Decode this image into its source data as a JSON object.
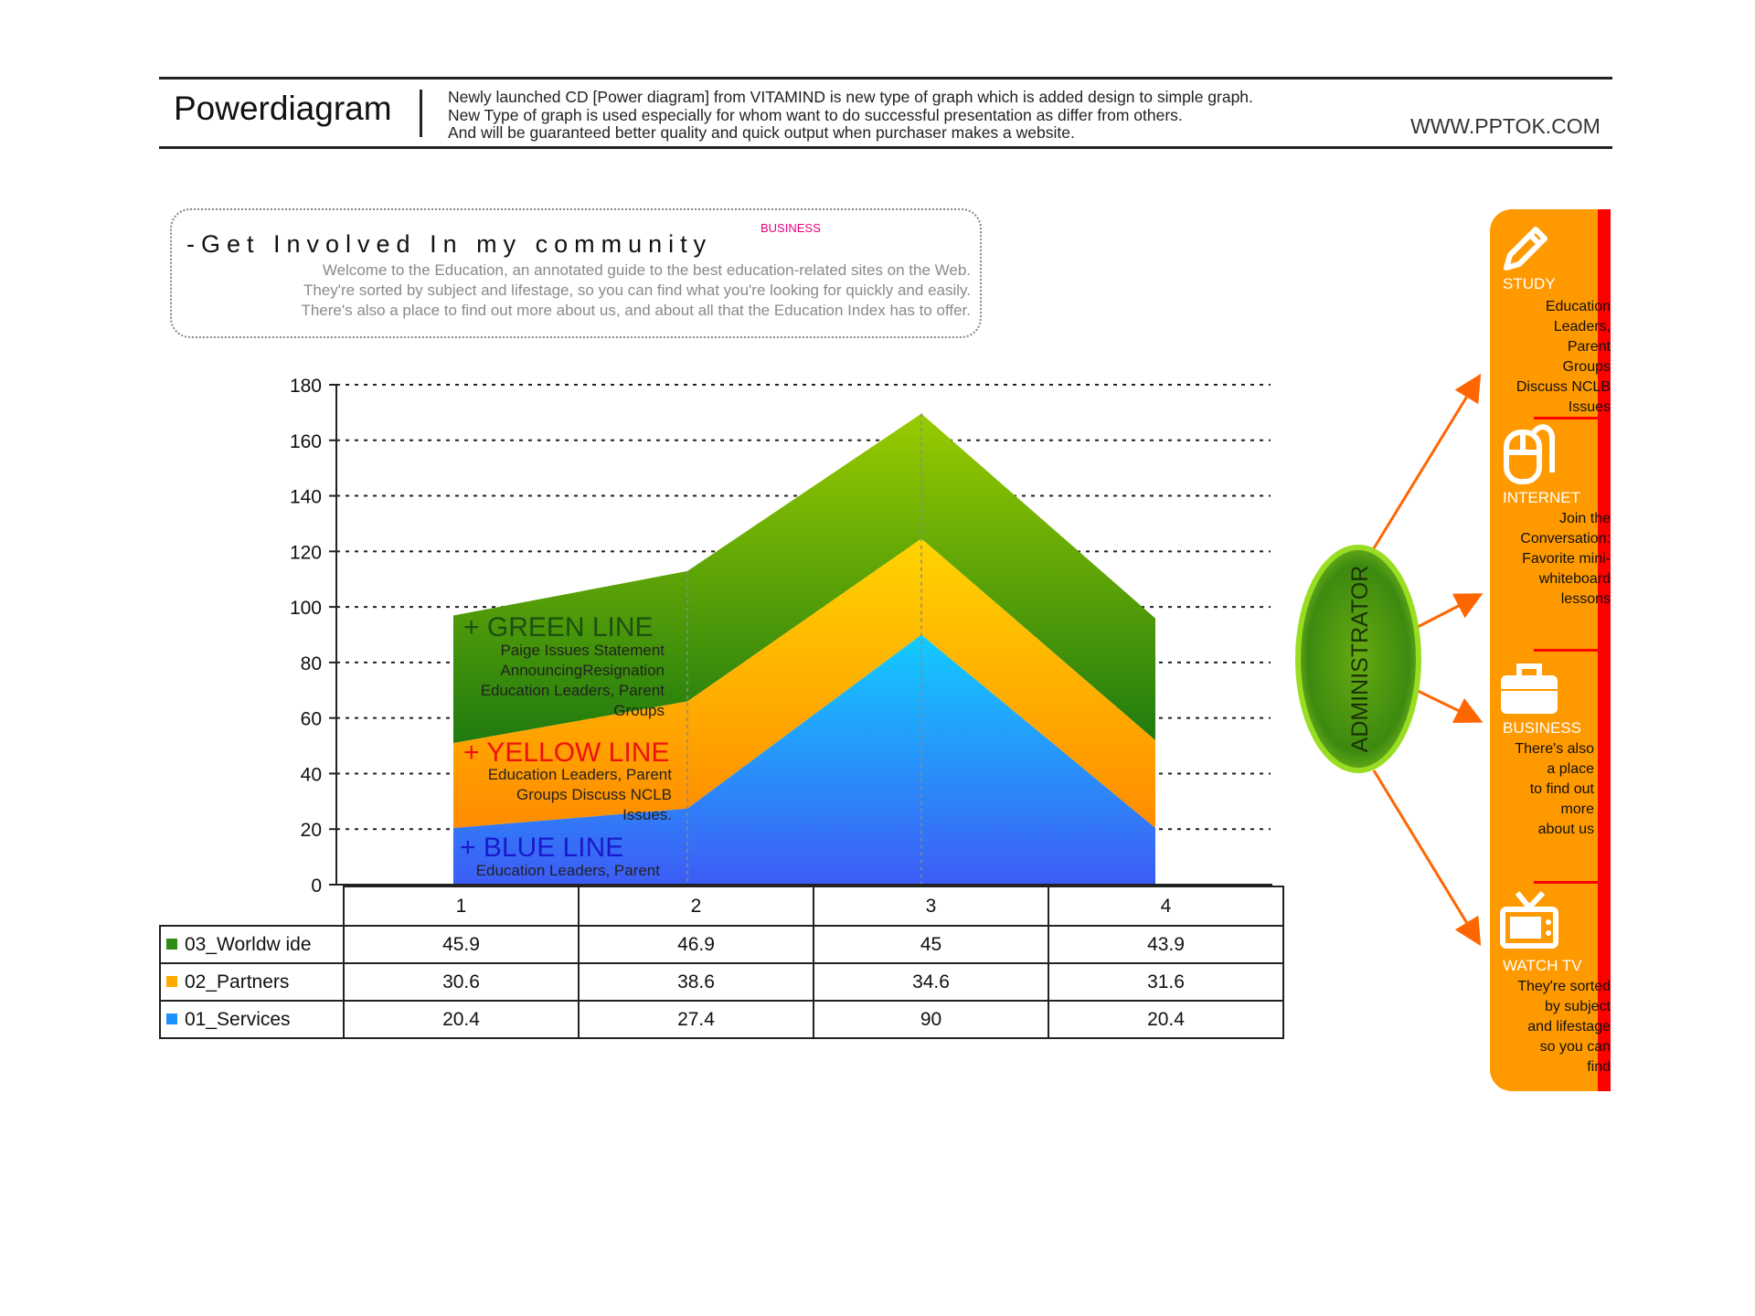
{
  "header": {
    "title": "Powerdiagram",
    "description": [
      "Newly launched CD [Power diagram] from VITAMIND is new type of graph which is added design to simple graph.",
      "New Type of graph is used especially for whom want to do successful presentation as differ from others.",
      "And will be guaranteed better quality and quick output when purchaser makes a website."
    ],
    "site": "WWW.PPTOK.COM"
  },
  "community": {
    "title": "-Get Involved In my community",
    "badge": "BUSINESS",
    "body": [
      "Welcome to the Education, an annotated guide to the best education-related sites on the Web.",
      "They're sorted by subject and lifestage, so you can find what you're looking for quickly and easily.",
      "There's also a place to find out more about us, and about all that the Education Index has to offer."
    ]
  },
  "chart_data": {
    "type": "area",
    "stacked": true,
    "categories": [
      "1",
      "2",
      "3",
      "4"
    ],
    "ylim": [
      0,
      180
    ],
    "yticks": [
      0,
      20,
      40,
      60,
      80,
      100,
      120,
      140,
      160,
      180
    ],
    "grid": true,
    "series": [
      {
        "name": "03_Worldwide",
        "values": [
          45.9,
          46.9,
          45,
          43.9
        ],
        "color": "#3a9a1a"
      },
      {
        "name": "02_Partners",
        "values": [
          30.6,
          38.6,
          34.6,
          31.6
        ],
        "color": "#ffaa00"
      },
      {
        "name": "01_Services",
        "values": [
          20.4,
          27.4,
          90,
          20.4
        ],
        "color": "#1e90ff"
      }
    ],
    "annotations": [
      {
        "title": "+ GREEN LINE",
        "color": "#1d4f12",
        "lines": [
          "Paige Issues Statement",
          "AnnouncingResignation",
          "Education Leaders, Parent",
          "Groups"
        ]
      },
      {
        "title": "+ YELLOW LINE",
        "color": "#ee1111",
        "lines": [
          "Education Leaders, Parent",
          "Groups Discuss NCLB",
          "Issues."
        ]
      },
      {
        "title": "+ BLUE LINE",
        "color": "#1a1acc",
        "lines": [
          "Education Leaders, Parent"
        ]
      }
    ],
    "table": {
      "rows": [
        {
          "name": "03_Worldw ide",
          "values": [
            "45.9",
            "46.9",
            "45",
            "43.9"
          ],
          "color": "#2e8b14"
        },
        {
          "name": "02_Partners",
          "values": [
            "30.6",
            "38.6",
            "34.6",
            "31.6"
          ],
          "color": "#ffaa00"
        },
        {
          "name": "01_Services",
          "values": [
            "20.4",
            "27.4",
            "90",
            "20.4"
          ],
          "color": "#1e90ff"
        }
      ]
    }
  },
  "admin": {
    "label": "ADMINISTRATOR",
    "panel": [
      {
        "title": "STUDY",
        "icon": "pencil-icon",
        "lines": [
          "Education",
          "Leaders,",
          "Parent",
          "Groups",
          "Discuss NCLB",
          "Issues"
        ]
      },
      {
        "title": "INTERNET",
        "icon": "mouse-icon",
        "lines": [
          "Join the",
          "Conversation:",
          "Favorite mini-",
          "whiteboard",
          "lessons"
        ]
      },
      {
        "title": "BUSINESS",
        "icon": "briefcase-icon",
        "lines": [
          "There's also",
          "a place",
          "to find out",
          "more",
          "about us"
        ]
      },
      {
        "title": "WATCH TV",
        "icon": "tv-icon",
        "lines": [
          "They're sorted",
          "by subject",
          "and lifestage",
          "so you can",
          "find"
        ]
      }
    ]
  }
}
